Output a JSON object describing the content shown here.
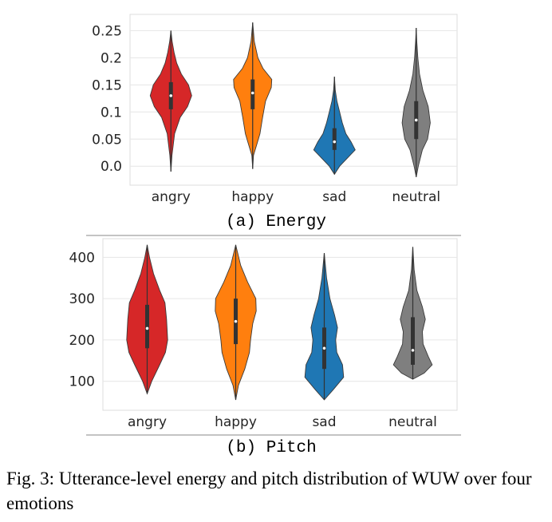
{
  "chart_data": [
    {
      "type": "violin",
      "subcaption": "(a) Energy",
      "categories": [
        "angry",
        "happy",
        "sad",
        "neutral"
      ],
      "colors": [
        "#d62728",
        "#ff7f0e",
        "#1f77b4",
        "#7f7f7f"
      ],
      "ylim": [
        -0.035,
        0.28
      ],
      "yticks": [
        0.0,
        0.05,
        0.1,
        0.15,
        0.2,
        0.25
      ],
      "ytick_labels": [
        "0.0",
        "0.05",
        "0.1",
        "0.15",
        "0.2",
        "0.25"
      ],
      "grid": true,
      "series": [
        {
          "min": -0.01,
          "max": 0.25,
          "q1": 0.105,
          "median": 0.13,
          "q3": 0.155,
          "profile": [
            [
              -0.01,
              0
            ],
            [
              0.02,
              0.05
            ],
            [
              0.06,
              0.18
            ],
            [
              0.09,
              0.45
            ],
            [
              0.11,
              0.8
            ],
            [
              0.13,
              1.0
            ],
            [
              0.15,
              0.85
            ],
            [
              0.17,
              0.5
            ],
            [
              0.19,
              0.28
            ],
            [
              0.21,
              0.15
            ],
            [
              0.23,
              0.06
            ],
            [
              0.25,
              0
            ]
          ]
        },
        {
          "min": -0.005,
          "max": 0.265,
          "q1": 0.105,
          "median": 0.135,
          "q3": 0.16,
          "profile": [
            [
              -0.005,
              0
            ],
            [
              0.02,
              0.04
            ],
            [
              0.04,
              0.2
            ],
            [
              0.06,
              0.35
            ],
            [
              0.09,
              0.48
            ],
            [
              0.12,
              0.62
            ],
            [
              0.145,
              0.9
            ],
            [
              0.16,
              0.92
            ],
            [
              0.18,
              0.5
            ],
            [
              0.2,
              0.25
            ],
            [
              0.23,
              0.08
            ],
            [
              0.265,
              0
            ]
          ]
        },
        {
          "min": -0.015,
          "max": 0.165,
          "q1": 0.03,
          "median": 0.045,
          "q3": 0.07,
          "profile": [
            [
              -0.015,
              0
            ],
            [
              0.0,
              0.25
            ],
            [
              0.02,
              0.75
            ],
            [
              0.03,
              1.0
            ],
            [
              0.045,
              0.8
            ],
            [
              0.06,
              0.55
            ],
            [
              0.08,
              0.38
            ],
            [
              0.1,
              0.25
            ],
            [
              0.12,
              0.12
            ],
            [
              0.14,
              0.04
            ],
            [
              0.165,
              0
            ]
          ]
        },
        {
          "min": -0.02,
          "max": 0.255,
          "q1": 0.05,
          "median": 0.085,
          "q3": 0.12,
          "profile": [
            [
              -0.02,
              0
            ],
            [
              0.0,
              0.1
            ],
            [
              0.03,
              0.3
            ],
            [
              0.05,
              0.55
            ],
            [
              0.08,
              0.68
            ],
            [
              0.11,
              0.58
            ],
            [
              0.14,
              0.32
            ],
            [
              0.17,
              0.16
            ],
            [
              0.2,
              0.08
            ],
            [
              0.23,
              0.03
            ],
            [
              0.255,
              0
            ]
          ]
        }
      ]
    },
    {
      "type": "violin",
      "subcaption": "(b) Pitch",
      "categories": [
        "angry",
        "happy",
        "sad",
        "neutral"
      ],
      "colors": [
        "#d62728",
        "#ff7f0e",
        "#1f77b4",
        "#7f7f7f"
      ],
      "ylim": [
        30,
        445
      ],
      "yticks": [
        100,
        200,
        300,
        400
      ],
      "ytick_labels": [
        "100",
        "200",
        "300",
        "400"
      ],
      "grid": true,
      "series": [
        {
          "min": 70,
          "max": 430,
          "q1": 180,
          "median": 228,
          "q3": 285,
          "profile": [
            [
              70,
              0
            ],
            [
              100,
              0.2
            ],
            [
              140,
              0.55
            ],
            [
              170,
              0.8
            ],
            [
              200,
              0.9
            ],
            [
              250,
              0.85
            ],
            [
              290,
              0.78
            ],
            [
              320,
              0.55
            ],
            [
              360,
              0.28
            ],
            [
              400,
              0.1
            ],
            [
              430,
              0
            ]
          ]
        },
        {
          "min": 55,
          "max": 430,
          "q1": 190,
          "median": 245,
          "q3": 300,
          "profile": [
            [
              55,
              0
            ],
            [
              90,
              0.12
            ],
            [
              130,
              0.4
            ],
            [
              170,
              0.6
            ],
            [
              200,
              0.65
            ],
            [
              240,
              0.75
            ],
            [
              270,
              0.9
            ],
            [
              300,
              0.88
            ],
            [
              340,
              0.52
            ],
            [
              380,
              0.22
            ],
            [
              430,
              0
            ]
          ]
        },
        {
          "min": 55,
          "max": 410,
          "q1": 130,
          "median": 180,
          "q3": 230,
          "profile": [
            [
              55,
              0
            ],
            [
              80,
              0.4
            ],
            [
              110,
              0.85
            ],
            [
              140,
              0.8
            ],
            [
              170,
              0.55
            ],
            [
              200,
              0.5
            ],
            [
              230,
              0.58
            ],
            [
              260,
              0.45
            ],
            [
              300,
              0.25
            ],
            [
              350,
              0.1
            ],
            [
              410,
              0
            ]
          ]
        },
        {
          "min": 105,
          "max": 425,
          "q1": 140,
          "median": 175,
          "q3": 255,
          "profile": [
            [
              105,
              0
            ],
            [
              120,
              0.5
            ],
            [
              140,
              0.85
            ],
            [
              160,
              0.68
            ],
            [
              190,
              0.45
            ],
            [
              220,
              0.42
            ],
            [
              250,
              0.55
            ],
            [
              280,
              0.42
            ],
            [
              320,
              0.18
            ],
            [
              370,
              0.06
            ],
            [
              425,
              0
            ]
          ]
        }
      ]
    }
  ],
  "caption": "Fig. 3: Utterance-level energy and pitch distribution of WUW over four emotions"
}
